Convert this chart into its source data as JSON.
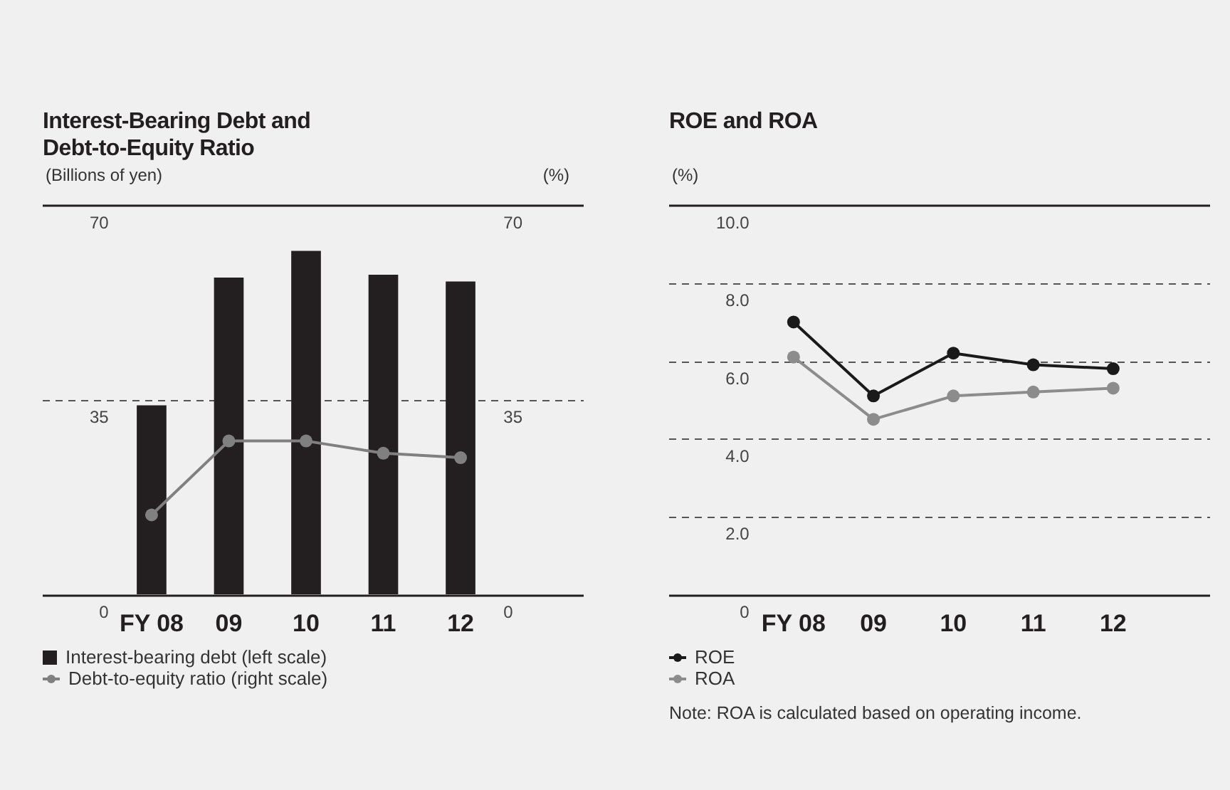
{
  "chart_data": [
    {
      "type": "bar",
      "title": "Interest-Bearing Debt and Debt-to-Equity Ratio",
      "ylabel": "(Billions of yen)",
      "y2label": "(%)",
      "categories": [
        "FY 08",
        "09",
        "10",
        "11",
        "12"
      ],
      "series": [
        {
          "name": "Interest-bearing debt (left scale)",
          "color": "#231f20",
          "values": [
            34.0,
            57.0,
            61.8,
            57.5,
            56.3
          ]
        },
        {
          "name": "Debt-to-equity ratio (right scale)",
          "type": "line",
          "axis": "y2",
          "color": "#808080",
          "values": [
            14.3,
            27.6,
            27.6,
            25.4,
            24.6
          ]
        }
      ],
      "ylim": [
        0,
        70
      ],
      "yticks": [
        0,
        35,
        70
      ],
      "y2lim": [
        0,
        70
      ],
      "y2ticks": [
        0,
        35,
        70
      ],
      "grid": "y",
      "legend": "bottom",
      "marker": "circle",
      "line_style": "solid"
    },
    {
      "type": "line",
      "title": "ROE and ROA",
      "ylabel": "(%)",
      "categories": [
        "FY 08",
        "09",
        "10",
        "11",
        "12"
      ],
      "series": [
        {
          "name": "ROE",
          "color": "#1a1a1a",
          "values": [
            7.0,
            5.1,
            6.2,
            5.9,
            5.8
          ]
        },
        {
          "name": "ROA",
          "color": "#8c8c8c",
          "values": [
            6.1,
            4.5,
            5.1,
            5.2,
            5.3
          ]
        }
      ],
      "ylim": [
        0,
        10
      ],
      "yticks": [
        0,
        {
          "value": 2,
          "label": "2.0"
        },
        {
          "value": 4,
          "label": "4.0"
        },
        {
          "value": 6,
          "label": "6.0"
        },
        {
          "value": 8,
          "label": "8.0"
        },
        {
          "value": 10,
          "label": "10.0"
        }
      ],
      "grid": "y",
      "legend": "bottom",
      "marker": "circle",
      "line_style": "solid",
      "annotations": [
        "Note: ROA is calculated based on operating income."
      ]
    }
  ]
}
